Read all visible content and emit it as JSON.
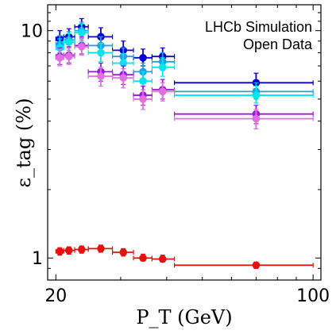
{
  "chart_data": {
    "type": "scatter",
    "annotation": [
      "LHCb Simulation",
      "Open Data"
    ],
    "xlabel": "P_T (GeV)",
    "ylabel": "ε_tag (%)",
    "xscale": "log",
    "yscale": "log",
    "xlim": [
      19,
      105
    ],
    "ylim": [
      0.8,
      13
    ],
    "xticks": [
      20,
      100
    ],
    "yticks": [
      1,
      10
    ],
    "grid": false,
    "legend": "none",
    "series": [
      {
        "color": "#0a00d6",
        "points": [
          {
            "x": 20.5,
            "xlo": 20,
            "xhi": 21,
            "y": 9.2,
            "ylo": 8.5,
            "yhi": 10.0
          },
          {
            "x": 21.7,
            "xlo": 21,
            "xhi": 22.5,
            "y": 9.4,
            "ylo": 8.7,
            "yhi": 10.2
          },
          {
            "x": 23.5,
            "xlo": 22.5,
            "xhi": 24.5,
            "y": 10.4,
            "ylo": 9.6,
            "yhi": 11.3
          },
          {
            "x": 26.5,
            "xlo": 24.5,
            "xhi": 28.5,
            "y": 9.4,
            "ylo": 8.6,
            "yhi": 10.3
          },
          {
            "x": 30.5,
            "xlo": 28.5,
            "xhi": 32.5,
            "y": 8.2,
            "ylo": 7.5,
            "yhi": 9.0
          },
          {
            "x": 34.5,
            "xlo": 32.5,
            "xhi": 36.5,
            "y": 7.6,
            "ylo": 7.0,
            "yhi": 8.3
          },
          {
            "x": 39,
            "xlo": 36.5,
            "xhi": 42,
            "y": 7.7,
            "ylo": 7.1,
            "yhi": 8.4
          },
          {
            "x": 70,
            "xlo": 42,
            "xhi": 100,
            "y": 5.9,
            "ylo": 5.4,
            "yhi": 6.5
          }
        ]
      },
      {
        "color": "#1aa2e6",
        "points": [
          {
            "x": 20.5,
            "xlo": 20,
            "xhi": 21,
            "y": 8.7,
            "ylo": 8.0,
            "yhi": 9.5
          },
          {
            "x": 21.7,
            "xlo": 21,
            "xhi": 22.5,
            "y": 9.1,
            "ylo": 8.4,
            "yhi": 9.9
          },
          {
            "x": 23.5,
            "xlo": 22.5,
            "xhi": 24.5,
            "y": 10.0,
            "ylo": 9.2,
            "yhi": 10.9
          },
          {
            "x": 26.5,
            "xlo": 24.5,
            "xhi": 28.5,
            "y": 8.6,
            "ylo": 7.9,
            "yhi": 9.4
          },
          {
            "x": 30.5,
            "xlo": 28.5,
            "xhi": 32.5,
            "y": 7.7,
            "ylo": 7.0,
            "yhi": 8.4
          },
          {
            "x": 34.5,
            "xlo": 32.5,
            "xhi": 36.5,
            "y": 6.6,
            "ylo": 6.0,
            "yhi": 7.2
          },
          {
            "x": 39,
            "xlo": 36.5,
            "xhi": 42,
            "y": 7.3,
            "ylo": 6.7,
            "yhi": 8.0
          },
          {
            "x": 70,
            "xlo": 42,
            "xhi": 100,
            "y": 5.4,
            "ylo": 5.0,
            "yhi": 5.9
          }
        ]
      },
      {
        "color": "#00e5ee",
        "points": [
          {
            "x": 20.5,
            "xlo": 20,
            "xhi": 21,
            "y": 8.4,
            "ylo": 7.7,
            "yhi": 9.2
          },
          {
            "x": 21.7,
            "xlo": 21,
            "xhi": 22.5,
            "y": 8.9,
            "ylo": 8.2,
            "yhi": 9.7
          },
          {
            "x": 23.5,
            "xlo": 22.5,
            "xhi": 24.5,
            "y": 9.8,
            "ylo": 9.0,
            "yhi": 10.7
          },
          {
            "x": 26.5,
            "xlo": 24.5,
            "xhi": 28.5,
            "y": 8.0,
            "ylo": 7.3,
            "yhi": 8.8
          },
          {
            "x": 30.5,
            "xlo": 28.5,
            "xhi": 32.5,
            "y": 7.2,
            "ylo": 6.6,
            "yhi": 7.9
          },
          {
            "x": 34.5,
            "xlo": 32.5,
            "xhi": 36.5,
            "y": 6.0,
            "ylo": 5.5,
            "yhi": 6.6
          },
          {
            "x": 39,
            "xlo": 36.5,
            "xhi": 42,
            "y": 6.9,
            "ylo": 6.3,
            "yhi": 7.6
          },
          {
            "x": 70,
            "xlo": 42,
            "xhi": 100,
            "y": 5.2,
            "ylo": 4.8,
            "yhi": 5.7
          }
        ]
      },
      {
        "color": "#9a1ce0",
        "points": [
          {
            "x": 20.5,
            "xlo": 20,
            "xhi": 21,
            "y": 7.7,
            "ylo": 7.1,
            "yhi": 8.4
          },
          {
            "x": 21.7,
            "xlo": 21,
            "xhi": 22.5,
            "y": 7.8,
            "ylo": 7.2,
            "yhi": 8.5
          },
          {
            "x": 23.5,
            "xlo": 22.5,
            "xhi": 24.5,
            "y": 8.6,
            "ylo": 7.9,
            "yhi": 9.4
          },
          {
            "x": 26.5,
            "xlo": 24.5,
            "xhi": 28.5,
            "y": 6.6,
            "ylo": 6.0,
            "yhi": 7.2
          },
          {
            "x": 30.5,
            "xlo": 28.5,
            "xhi": 32.5,
            "y": 6.4,
            "ylo": 5.8,
            "yhi": 7.0
          },
          {
            "x": 34.5,
            "xlo": 32.5,
            "xhi": 36.5,
            "y": 5.2,
            "ylo": 4.7,
            "yhi": 5.7
          },
          {
            "x": 39,
            "xlo": 36.5,
            "xhi": 42,
            "y": 5.5,
            "ylo": 5.0,
            "yhi": 6.1
          },
          {
            "x": 70,
            "xlo": 42,
            "xhi": 100,
            "y": 4.3,
            "ylo": 3.9,
            "yhi": 4.7
          }
        ]
      },
      {
        "color": "#e070e0",
        "points": [
          {
            "x": 20.5,
            "xlo": 20,
            "xhi": 21,
            "y": 7.6,
            "ylo": 7.0,
            "yhi": 8.3
          },
          {
            "x": 21.7,
            "xlo": 21,
            "xhi": 22.5,
            "y": 7.7,
            "ylo": 7.1,
            "yhi": 8.4
          },
          {
            "x": 23.5,
            "xlo": 22.5,
            "xhi": 24.5,
            "y": 8.5,
            "ylo": 7.8,
            "yhi": 9.3
          },
          {
            "x": 26.5,
            "xlo": 24.5,
            "xhi": 28.5,
            "y": 6.3,
            "ylo": 5.7,
            "yhi": 6.9
          },
          {
            "x": 30.5,
            "xlo": 28.5,
            "xhi": 32.5,
            "y": 6.2,
            "ylo": 5.6,
            "yhi": 6.8
          },
          {
            "x": 34.5,
            "xlo": 32.5,
            "xhi": 36.5,
            "y": 5.0,
            "ylo": 4.5,
            "yhi": 5.5
          },
          {
            "x": 39,
            "xlo": 36.5,
            "xhi": 42,
            "y": 5.4,
            "ylo": 4.9,
            "yhi": 5.9
          },
          {
            "x": 70,
            "xlo": 42,
            "xhi": 100,
            "y": 4.1,
            "ylo": 3.7,
            "yhi": 4.5
          }
        ]
      },
      {
        "color": "#e61010",
        "points": [
          {
            "x": 20.5,
            "xlo": 20,
            "xhi": 21,
            "y": 1.07,
            "ylo": 1.03,
            "yhi": 1.11
          },
          {
            "x": 21.7,
            "xlo": 21,
            "xhi": 22.5,
            "y": 1.08,
            "ylo": 1.04,
            "yhi": 1.12
          },
          {
            "x": 23.5,
            "xlo": 22.5,
            "xhi": 24.5,
            "y": 1.09,
            "ylo": 1.05,
            "yhi": 1.13
          },
          {
            "x": 26.5,
            "xlo": 24.5,
            "xhi": 28.5,
            "y": 1.1,
            "ylo": 1.06,
            "yhi": 1.14
          },
          {
            "x": 30.5,
            "xlo": 28.5,
            "xhi": 32.5,
            "y": 1.06,
            "ylo": 1.02,
            "yhi": 1.1
          },
          {
            "x": 34.5,
            "xlo": 32.5,
            "xhi": 36.5,
            "y": 1.0,
            "ylo": 0.97,
            "yhi": 1.04
          },
          {
            "x": 39,
            "xlo": 36.5,
            "xhi": 42,
            "y": 0.99,
            "ylo": 0.96,
            "yhi": 1.03
          },
          {
            "x": 70,
            "xlo": 42,
            "xhi": 100,
            "y": 0.93,
            "ylo": 0.9,
            "yhi": 0.96
          }
        ]
      }
    ]
  }
}
